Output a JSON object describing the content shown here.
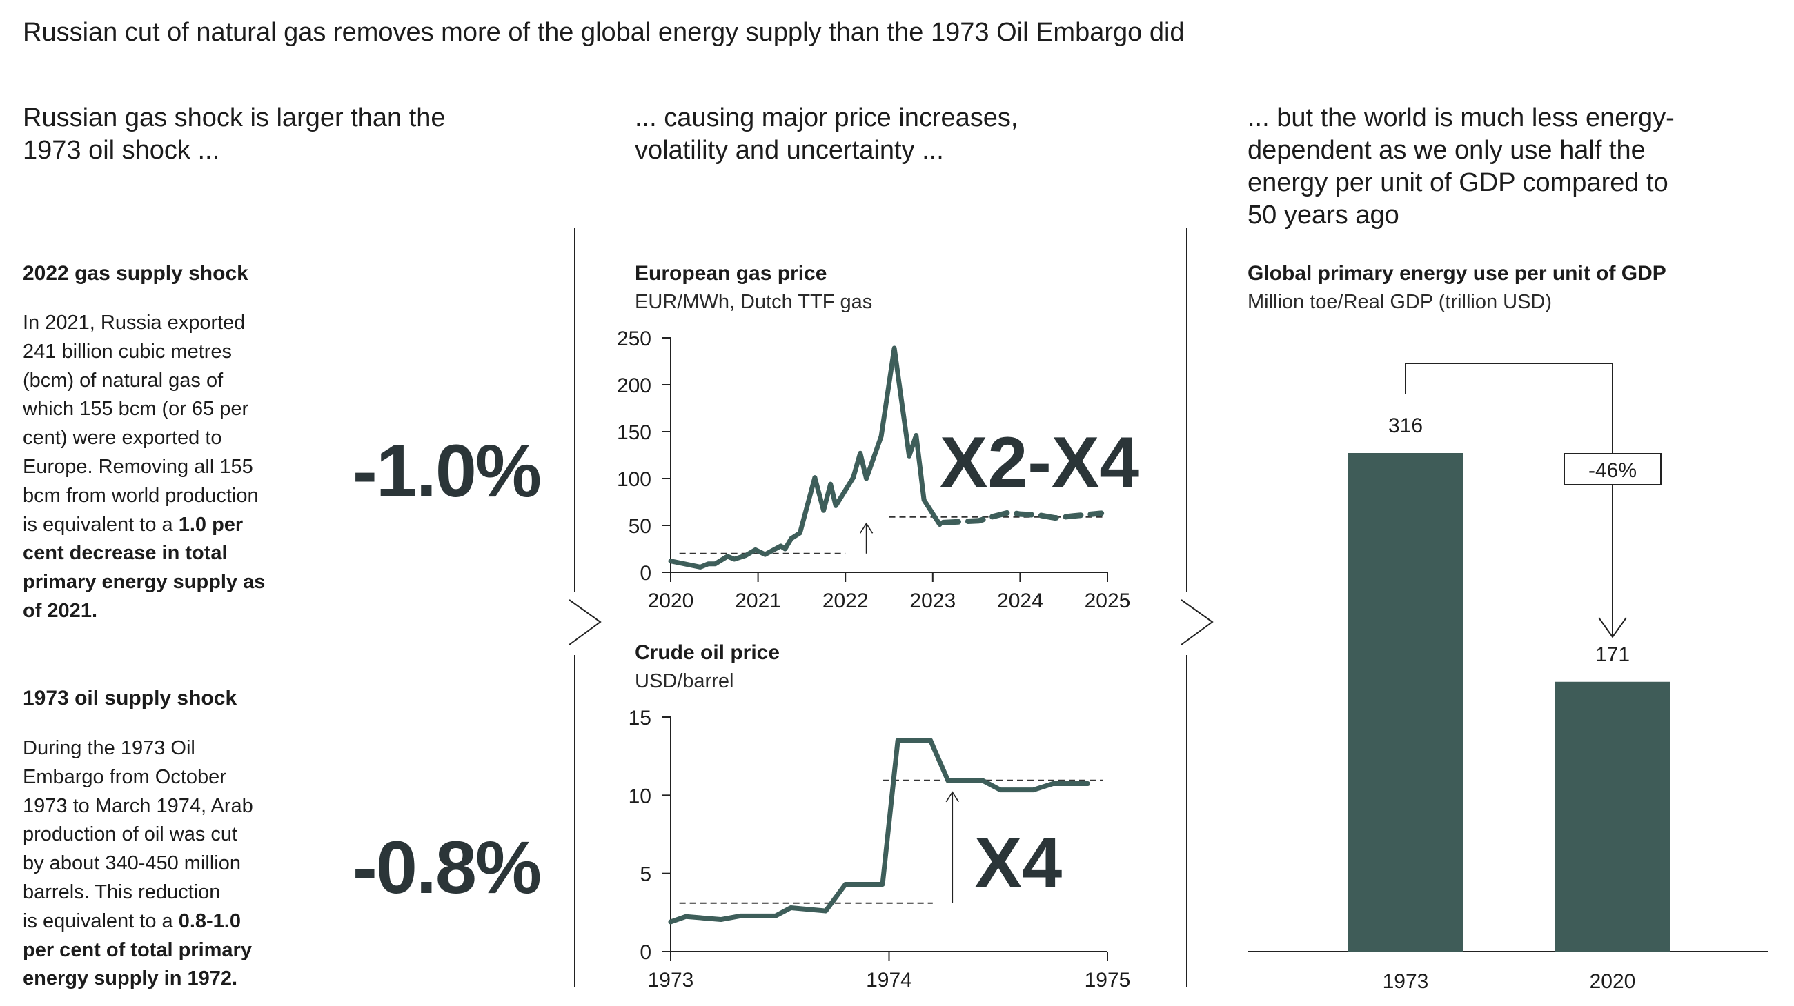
{
  "title": "Russian cut of natural gas removes more of the global energy supply than the 1973 Oil Embargo did",
  "columns": [
    {
      "heading_lines": [
        "Russian gas shock is larger than the",
        "1973 oil shock ..."
      ]
    },
    {
      "heading_lines": [
        "... causing major price increases,",
        "volatility and uncertainty ..."
      ]
    },
    {
      "heading_lines": [
        "... but the world is much less energy-",
        "dependent as we only use half the",
        "energy per unit of GDP compared to",
        "50 years ago"
      ]
    }
  ],
  "gas_shock": {
    "heading": "2022 gas supply shock",
    "lines": [
      {
        "t": "In 2021, Russia exported",
        "b": ""
      },
      {
        "t": "241 billion cubic metres",
        "b": ""
      },
      {
        "t": "(bcm) of natural gas of",
        "b": ""
      },
      {
        "t": "which 155 bcm (or 65 per",
        "b": ""
      },
      {
        "t": "cent) were exported to",
        "b": ""
      },
      {
        "t": "Europe. Removing all 155",
        "b": ""
      },
      {
        "t": "bcm from world production",
        "b": ""
      },
      {
        "t": "is equivalent to a ",
        "b": "1.0 per"
      },
      {
        "t": "",
        "b": "cent decrease in total"
      },
      {
        "t": "",
        "b": "primary energy supply as"
      },
      {
        "t": "",
        "b": "of 2021."
      }
    ],
    "big_value": "-1.0%"
  },
  "oil_shock": {
    "heading": "1973 oil supply shock",
    "lines": [
      {
        "t": "During the 1973 Oil",
        "b": ""
      },
      {
        "t": "Embargo from October",
        "b": ""
      },
      {
        "t": "1973 to March 1974, Arab",
        "b": ""
      },
      {
        "t": "production of oil was cut",
        "b": ""
      },
      {
        "t": "by about 340-450 million",
        "b": ""
      },
      {
        "t": "barrels. This reduction",
        "b": ""
      },
      {
        "t": "is equivalent to a ",
        "b": "0.8-1.0"
      },
      {
        "t": "",
        "b": "per cent of total primary"
      },
      {
        "t": "",
        "b": "energy supply in 1972."
      }
    ],
    "big_value": "-0.8%"
  },
  "colors": {
    "line": "#3e5e5a",
    "bar": "#3f5c58",
    "text": "#1c1c1c",
    "big": "#2b3538"
  },
  "chart_data": [
    {
      "type": "line",
      "title": "European gas price",
      "subtitle": "EUR/MWh, Dutch TTF gas",
      "annotation": "X2-X4",
      "xlim": [
        2020,
        2025
      ],
      "ylim": [
        0,
        250
      ],
      "xticks": [
        "2020",
        "2021",
        "2022",
        "2023",
        "2024",
        "2025"
      ],
      "yticks": [
        "0",
        "50",
        "100",
        "150",
        "200",
        "250"
      ],
      "grid": false,
      "series": [
        {
          "style": "solid",
          "x": [
            2020.0,
            2020.34,
            2020.43,
            2020.51,
            2020.65,
            2020.73,
            2020.86,
            2020.97,
            2021.08,
            2021.26,
            2021.31,
            2021.38,
            2021.48,
            2021.65,
            2021.75,
            2021.83,
            2021.89,
            2022.09,
            2022.17,
            2022.24,
            2022.41,
            2022.56,
            2022.73,
            2022.81,
            2022.9,
            2023.08
          ],
          "y": [
            12,
            5.6,
            9,
            9,
            17,
            14,
            18,
            24,
            19,
            28,
            25,
            36,
            42,
            101,
            66,
            94,
            71,
            101,
            127,
            100,
            145,
            239,
            124,
            146,
            77,
            51
          ]
        },
        {
          "style": "dashed",
          "x": [
            2023.12,
            2023.53,
            2023.67,
            2023.88,
            2024.0,
            2024.22,
            2024.4,
            2024.6,
            2024.93
          ],
          "y": [
            53,
            55,
            59,
            64,
            62,
            61,
            58,
            60,
            63
          ]
        }
      ],
      "reference_lines": [
        {
          "x": [
            2020.1,
            2022.0
          ],
          "y": 20
        },
        {
          "x": [
            2022.5,
            2024.95
          ],
          "y": 59
        }
      ],
      "arrow": {
        "x": 2022.24,
        "from": 20,
        "to": 52
      }
    },
    {
      "type": "line",
      "title": "Crude oil price",
      "subtitle": "USD/barrel",
      "annotation": "X4",
      "xlim": [
        1973,
        1975
      ],
      "ylim": [
        0,
        15
      ],
      "xticks": [
        "1973",
        "1974",
        "1975"
      ],
      "yticks": [
        "0",
        "5",
        "10",
        "15"
      ],
      "grid": false,
      "series": [
        {
          "style": "solid",
          "x": [
            1973.0,
            1973.07,
            1973.23,
            1973.32,
            1973.48,
            1973.55,
            1973.71,
            1973.8,
            1973.97,
            1974.04,
            1974.19,
            1974.27,
            1974.43,
            1974.51,
            1974.66,
            1974.75,
            1974.91
          ],
          "y": [
            1.9,
            2.24,
            2.05,
            2.28,
            2.28,
            2.8,
            2.6,
            4.3,
            4.3,
            13.5,
            13.5,
            10.93,
            10.93,
            10.34,
            10.34,
            10.74,
            10.74
          ]
        }
      ],
      "reference_lines": [
        {
          "x": [
            1973.04,
            1974.2
          ],
          "y": 3.1
        },
        {
          "x": [
            1973.97,
            1974.98
          ],
          "y": 10.95
        }
      ],
      "arrow": {
        "x": 1974.29,
        "from": 3.1,
        "to": 10.2
      }
    },
    {
      "type": "bar",
      "title": "Global primary energy use per unit of GDP",
      "subtitle": "Million toe/Real GDP (trillion USD)",
      "categories": [
        "1973",
        "2020"
      ],
      "values": [
        316,
        171
      ],
      "value_labels": [
        "316",
        "171"
      ],
      "change_label": "-46%",
      "ylim": [
        0,
        316
      ]
    }
  ]
}
